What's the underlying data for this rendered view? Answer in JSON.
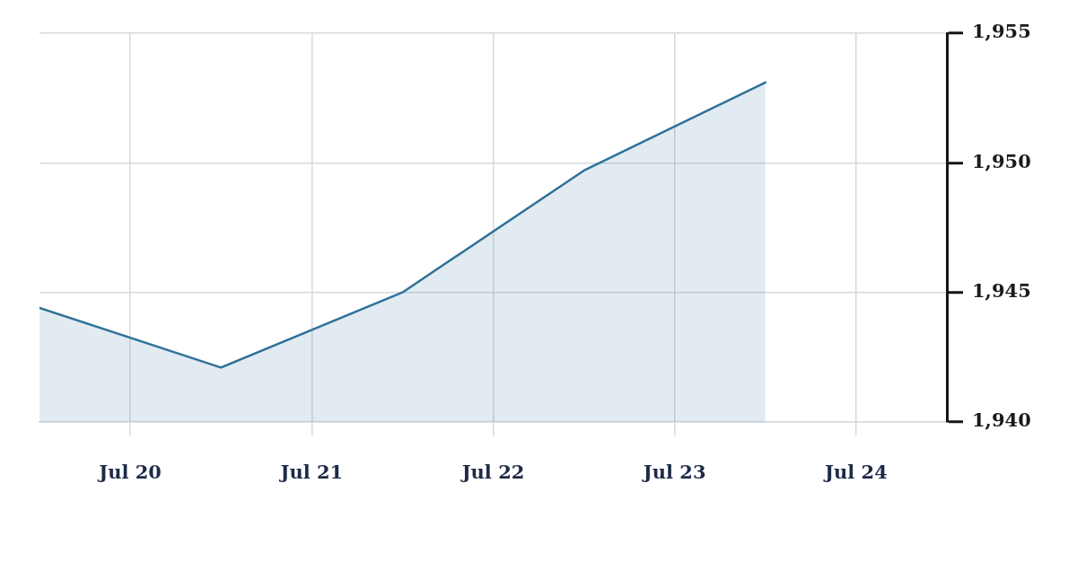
{
  "chart_data": {
    "type": "area",
    "x": [
      "--07-19T12:00",
      "--07-20T12:00",
      "--07-21T12:00",
      "--07-22T12:00",
      "--07-23T12:00"
    ],
    "values": [
      1944.4,
      1942.1,
      1945.0,
      1949.7,
      1953.1
    ],
    "color": "#2f7199",
    "xlim": [
      "--07-19T12:00",
      "--07-24T12:00"
    ],
    "xticks": [
      {
        "value": "--07-20",
        "label": "Jul 20"
      },
      {
        "value": "--07-21",
        "label": "Jul 21"
      },
      {
        "value": "--07-22",
        "label": "Jul 22"
      },
      {
        "value": "--07-23",
        "label": "Jul 23"
      },
      {
        "value": "--07-24",
        "label": "Jul 24"
      }
    ],
    "ylim": [
      1940,
      1955
    ],
    "yticks": [
      {
        "value": 1940,
        "label": "1,940"
      },
      {
        "value": 1945,
        "label": "1,945"
      },
      {
        "value": 1950,
        "label": "1,950"
      },
      {
        "value": 1955,
        "label": "1,955"
      }
    ],
    "grid": true
  }
}
